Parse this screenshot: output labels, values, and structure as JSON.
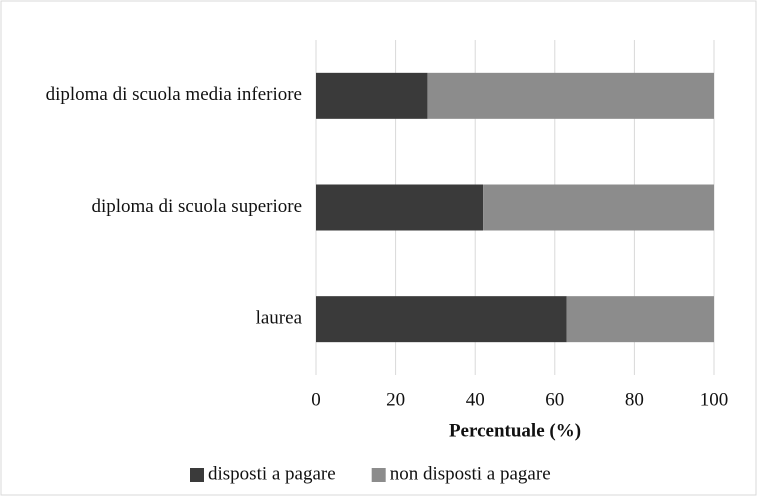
{
  "chart_data": {
    "type": "stacked-bar-horizontal",
    "categories": [
      "diploma di scuola media inferiore",
      "diploma di scuola superiore",
      "laurea"
    ],
    "series": [
      {
        "name": "disposti a pagare",
        "color": "#3a3a3a",
        "values": [
          28,
          42,
          63
        ]
      },
      {
        "name": "non disposti a pagare",
        "color": "#8c8c8c",
        "values": [
          72,
          58,
          37
        ]
      }
    ],
    "x_label": "Percentuale (%)",
    "xlim": [
      0,
      100
    ],
    "xticks": [
      0,
      20,
      40,
      60,
      80,
      100
    ],
    "grid": true,
    "legend": "bottom"
  }
}
